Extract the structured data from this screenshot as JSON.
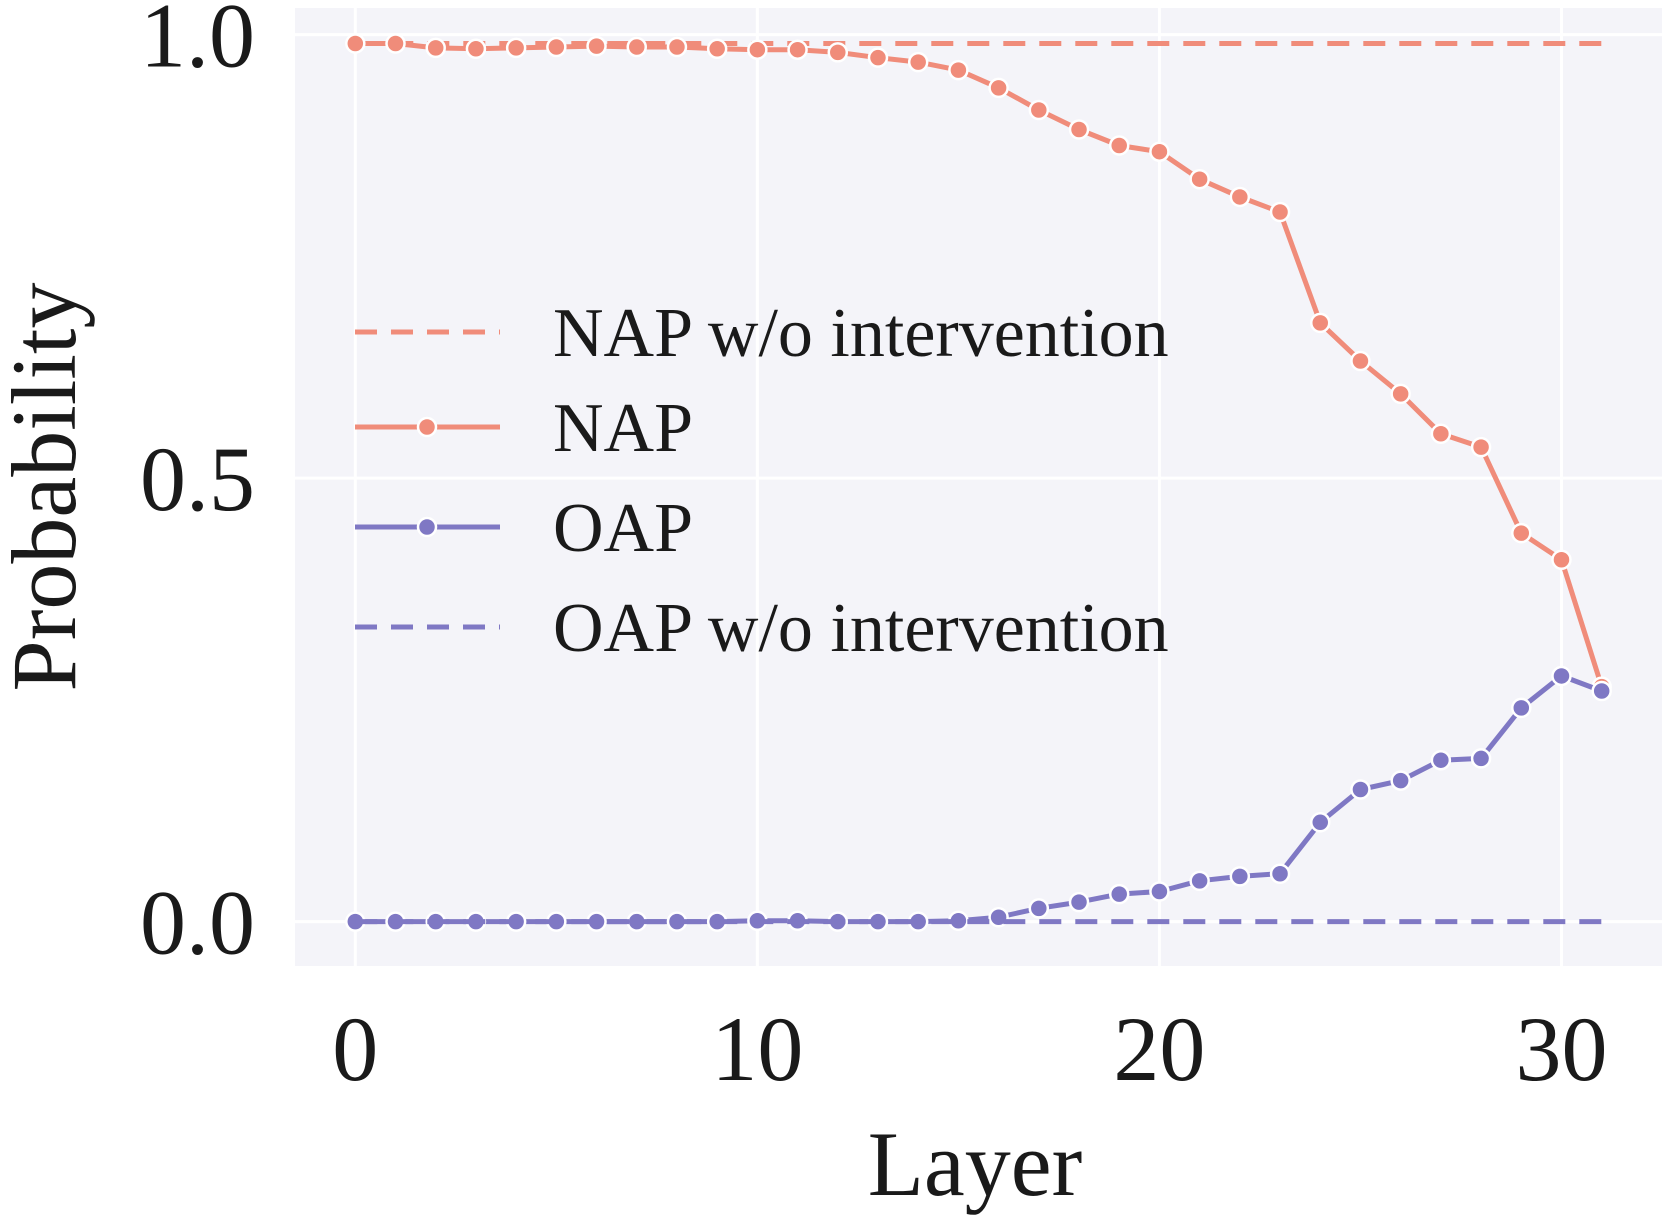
{
  "chart_data": {
    "type": "line",
    "xlabel": "Layer",
    "ylabel": "Probability",
    "xlim": [
      -1.5,
      32.5
    ],
    "ylim": [
      -0.05,
      1.03
    ],
    "xticks": [
      0,
      10,
      20,
      30
    ],
    "xtick_labels": [
      "0",
      "10",
      "20",
      "30"
    ],
    "yticks": [
      0.0,
      0.5,
      1.0
    ],
    "ytick_labels": [
      "0.0",
      "0.5",
      "1.0"
    ],
    "grid": true,
    "background": "#f4f4f9",
    "legend_position": "center-left",
    "x": [
      0,
      1,
      2,
      3,
      4,
      5,
      6,
      7,
      8,
      9,
      10,
      11,
      12,
      13,
      14,
      15,
      16,
      17,
      18,
      19,
      20,
      21,
      22,
      23,
      24,
      25,
      26,
      27,
      28,
      29,
      30,
      31
    ],
    "series": [
      {
        "name": "NAP w/o intervention",
        "style": "dashed",
        "color": "#f08c7a",
        "values": [
          0.99,
          0.99,
          0.99,
          0.99,
          0.99,
          0.99,
          0.99,
          0.99,
          0.99,
          0.99,
          0.99,
          0.99,
          0.99,
          0.99,
          0.99,
          0.99,
          0.99,
          0.99,
          0.99,
          0.99,
          0.99,
          0.99,
          0.99,
          0.99,
          0.99,
          0.99,
          0.99,
          0.99,
          0.99,
          0.99,
          0.99,
          0.99
        ]
      },
      {
        "name": "NAP",
        "style": "solid-marker",
        "color": "#f08c7a",
        "values": [
          0.99,
          0.99,
          0.985,
          0.984,
          0.985,
          0.986,
          0.987,
          0.986,
          0.986,
          0.984,
          0.983,
          0.983,
          0.98,
          0.974,
          0.969,
          0.96,
          0.94,
          0.915,
          0.893,
          0.875,
          0.868,
          0.837,
          0.817,
          0.8,
          0.675,
          0.632,
          0.595,
          0.55,
          0.535,
          0.438,
          0.408,
          0.265
        ]
      },
      {
        "name": "OAP",
        "style": "solid-marker",
        "color": "#7f78c4",
        "values": [
          0.0,
          0.0,
          0.0,
          0.0,
          0.0,
          0.0,
          0.0,
          0.0,
          0.0,
          0.0,
          0.001,
          0.001,
          0.0,
          0.0,
          0.0,
          0.001,
          0.005,
          0.015,
          0.022,
          0.031,
          0.034,
          0.046,
          0.051,
          0.054,
          0.112,
          0.149,
          0.159,
          0.182,
          0.184,
          0.241,
          0.277,
          0.26
        ]
      },
      {
        "name": "OAP w/o intervention",
        "style": "dashed",
        "color": "#7f78c4",
        "values": [
          0.0,
          0.0,
          0.0,
          0.0,
          0.0,
          0.0,
          0.0,
          0.0,
          0.0,
          0.0,
          0.0,
          0.0,
          0.0,
          0.0,
          0.0,
          0.0,
          0.0,
          0.0,
          0.0,
          0.0,
          0.0,
          0.0,
          0.0,
          0.0,
          0.0,
          0.0,
          0.0,
          0.0,
          0.0,
          0.0,
          0.0,
          0.0
        ]
      }
    ]
  }
}
